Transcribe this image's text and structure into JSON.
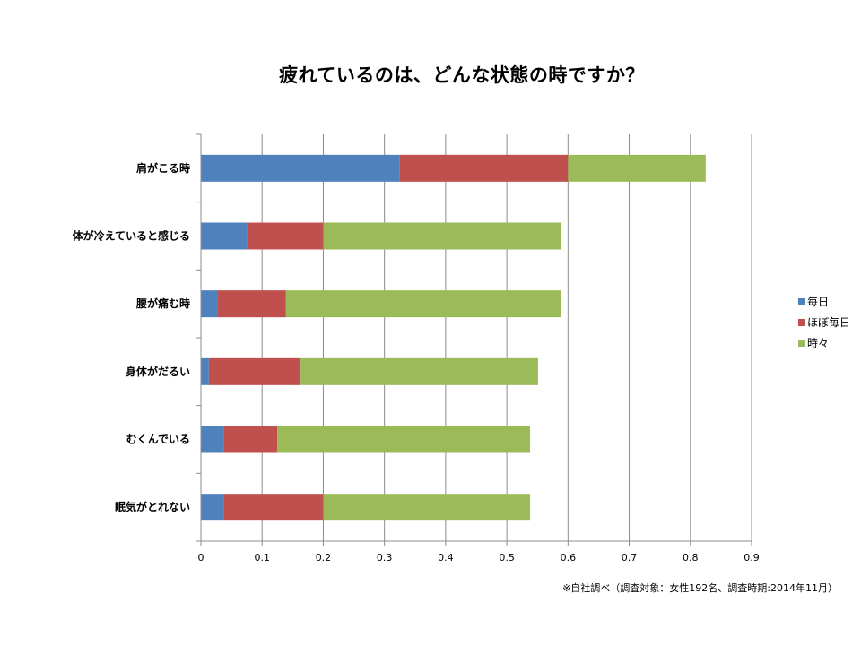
{
  "chart_data": {
    "type": "bar",
    "orientation": "horizontal",
    "stacked": true,
    "title": "疲れているのは、どんな状態の時ですか？",
    "categories": [
      "肩がこる時",
      "体が冷えていると感じる",
      "腰が痛む時",
      "身体がだるい",
      "むくんでいる",
      "眠気がとれない"
    ],
    "series": [
      {
        "name": "毎日",
        "color": "#4F81BD",
        "values": [
          0.325,
          0.075,
          0.027,
          0.013,
          0.037,
          0.037
        ]
      },
      {
        "name": "ほぼ毎日",
        "color": "#C0504D",
        "values": [
          0.275,
          0.125,
          0.112,
          0.15,
          0.088,
          0.163
        ]
      },
      {
        "name": "時々",
        "color": "#9BBB59",
        "values": [
          0.225,
          0.388,
          0.45,
          0.388,
          0.413,
          0.338
        ]
      }
    ],
    "xlim": [
      0,
      0.9
    ],
    "xticks": [
      "0",
      "0.1",
      "0.2",
      "0.3",
      "0.4",
      "0.5",
      "0.6",
      "0.7",
      "0.8",
      "0.9"
    ],
    "grid": true,
    "legend_position": "right"
  },
  "footnote": "※自社調べ（調査対象：女性192名、調査時期:2014年11月）"
}
